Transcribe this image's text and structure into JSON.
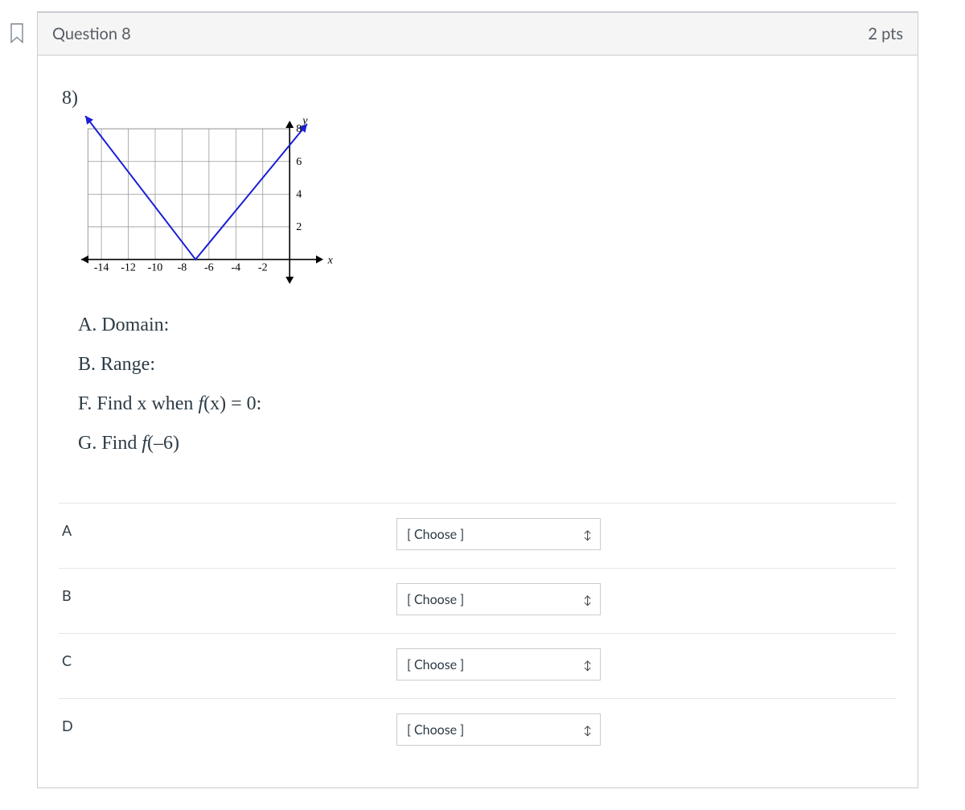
{
  "header": {
    "title": "Question 8",
    "points": "2 pts"
  },
  "problem": {
    "number_label": "8)",
    "prompts": {
      "a": "A. Domain:",
      "b": "B. Range:",
      "f_prefix": "F. Find x when ",
      "f_func": "f",
      "f_paren": "(x) = 0:",
      "g_prefix": "G. Find ",
      "g_func": "f",
      "g_paren": "(–6)"
    },
    "graph": {
      "x_ticks": [
        "-14",
        "-12",
        "-10",
        "-8",
        "-6",
        "-4",
        "-2"
      ],
      "y_ticks": [
        "2",
        "4",
        "6",
        "8"
      ],
      "y_axis_label": "y",
      "x_axis_label": "x",
      "xlim": [
        -15.5,
        2.5
      ],
      "ylim": [
        -1.5,
        8.5
      ],
      "line_points": [
        [
          -15.2,
          8.8
        ],
        [
          -7,
          0
        ],
        [
          1.3,
          8.3
        ]
      ],
      "line_color": "#1b1fd6",
      "grid_color": "#9a9a9a",
      "axis_color": "#000000",
      "background_color": "#ffffff",
      "tick_fontsize": 14,
      "axis_label_fontsize": 14,
      "gridlines_x": [
        -14,
        -12,
        -10,
        -8,
        -6,
        -4,
        -2,
        0
      ],
      "gridlines_y": [
        0,
        2,
        4,
        6,
        8
      ]
    }
  },
  "matches": [
    {
      "label": "A",
      "choose": "[ Choose ]"
    },
    {
      "label": "B",
      "choose": "[ Choose ]"
    },
    {
      "label": "C",
      "choose": "[ Choose ]"
    },
    {
      "label": "D",
      "choose": "[ Choose ]"
    }
  ],
  "style": {
    "card_border": "#c8cdd1",
    "header_bg": "#f5f5f5",
    "text_color": "#2d3b45",
    "flag_stroke": "#7b8791"
  }
}
